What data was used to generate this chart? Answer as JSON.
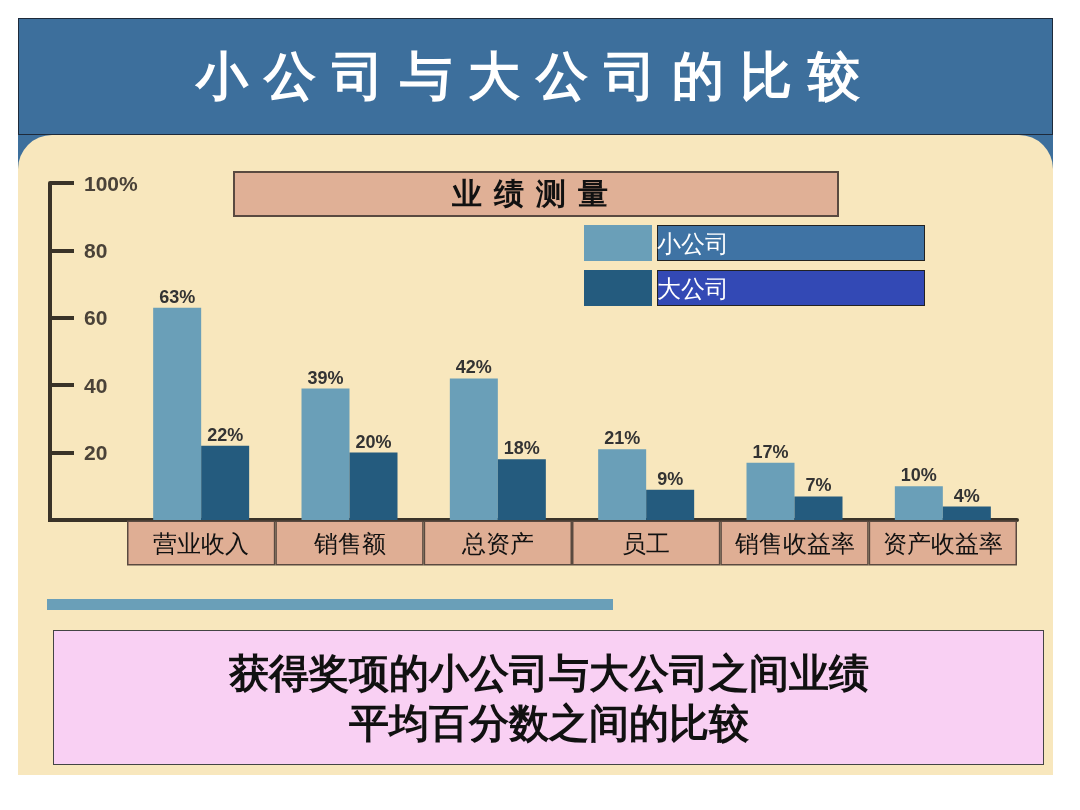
{
  "chart_data": {
    "type": "bar",
    "title": "小公司与大公司的比较",
    "subtitle": "业绩测量",
    "categories": [
      "营业收入",
      "销售额",
      "总资产",
      "员工",
      "销售收益率",
      "资产收益率"
    ],
    "series": [
      {
        "name": "小公司",
        "color": "#6a9fb8",
        "values": [
          63,
          39,
          42,
          21,
          17,
          10
        ],
        "value_labels": [
          "63%",
          "39%",
          "42%",
          "21%",
          "17%",
          "10%"
        ]
      },
      {
        "name": "大公司",
        "color": "#245b7e",
        "values": [
          22,
          20,
          18,
          9,
          7,
          4
        ],
        "value_labels": [
          "22%",
          "20%",
          "18%",
          "9%",
          "7%",
          "4%"
        ]
      }
    ],
    "ylim": [
      0,
      100
    ],
    "yticks": [
      20,
      40,
      60,
      80,
      {
        "value": 100,
        "label": "100%"
      }
    ],
    "grid": false,
    "legend": "top right",
    "annotations": [
      "获得奖项的小公司与大公司之间业绩平均百分数之间的比较"
    ]
  }
}
